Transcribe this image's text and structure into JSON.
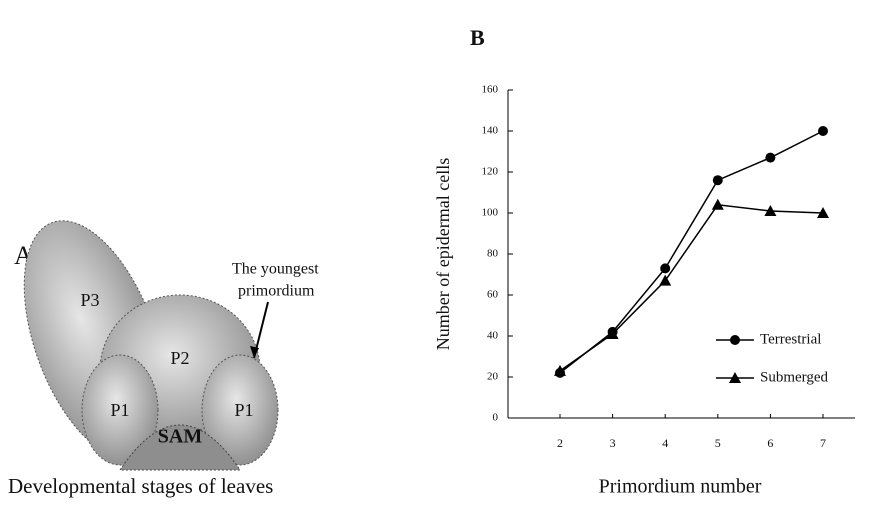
{
  "panel_a": {
    "label": "A",
    "regions": [
      "P3",
      "P2",
      "P1",
      "P1",
      "SAM"
    ],
    "annotation": [
      "The youngest",
      "primordium"
    ],
    "caption": "Developmental stages of leaves"
  },
  "chart_data": {
    "type": "line",
    "panel_label": "B",
    "x_label": "Primordium number",
    "y_label": "Number of epidermal cells",
    "categories": [
      "2",
      "3",
      "4",
      "5",
      "6",
      "7"
    ],
    "series": [
      {
        "name": "Terrestrial",
        "color": "#000000",
        "marker": "circle",
        "values": [
          22,
          42,
          73,
          116,
          127,
          140
        ]
      },
      {
        "name": "Submerged",
        "color": "#000000",
        "marker": "triangle",
        "values": [
          23,
          41,
          67,
          104,
          101,
          100
        ]
      }
    ],
    "ylim": [
      0,
      160
    ],
    "yticks": [
      0,
      20,
      40,
      60,
      80,
      100,
      120,
      140,
      160
    ],
    "legend": "right"
  }
}
